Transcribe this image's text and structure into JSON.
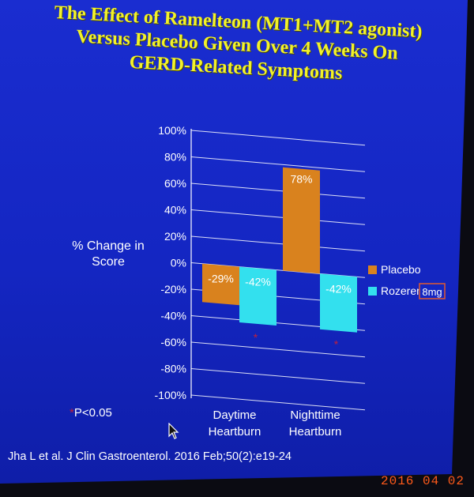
{
  "slide": {
    "title_lines": [
      "The Effect of Ramelteon (MT1+MT2 agonist)",
      "Versus Placebo Given Over 4 Weeks On",
      "GERD-Related Symptoms"
    ],
    "y_axis_label_lines": [
      "% Change in",
      "Score"
    ],
    "significance_note_star": "*",
    "significance_note_text": "P<0.05",
    "citation": "Jha L et al. J Clin Gastroenterol. 2016 Feb;50(2):e19-24",
    "date_stamp": "2016 04 02"
  },
  "colors": {
    "background": "#1426c2",
    "title": "#f2f22a",
    "placebo": "#d9821e",
    "rozerem": "#33e0ee",
    "significance_star": "#c0203a",
    "date_stamp": "#ff5a1a"
  },
  "chart_data": {
    "type": "bar",
    "categories": [
      [
        "Daytime",
        "Heartburn"
      ],
      [
        "Nighttime",
        "Heartburn"
      ]
    ],
    "series": [
      {
        "name": "Placebo",
        "values": [
          -29,
          78
        ],
        "labels": [
          "-29%",
          "78%"
        ],
        "significant": [
          false,
          false
        ]
      },
      {
        "name": "Rozerem",
        "values": [
          -42,
          -42
        ],
        "labels": [
          "-42%",
          "-42%"
        ],
        "significant": [
          true,
          true
        ]
      }
    ],
    "legend_badge": "8mg",
    "ylim": [
      -100,
      100
    ],
    "yticks": [
      "100%",
      "80%",
      "60%",
      "40%",
      "20%",
      "0%",
      "-20%",
      "-40%",
      "-60%",
      "-80%",
      "-100%"
    ],
    "grid": true,
    "legend_position": "right"
  }
}
